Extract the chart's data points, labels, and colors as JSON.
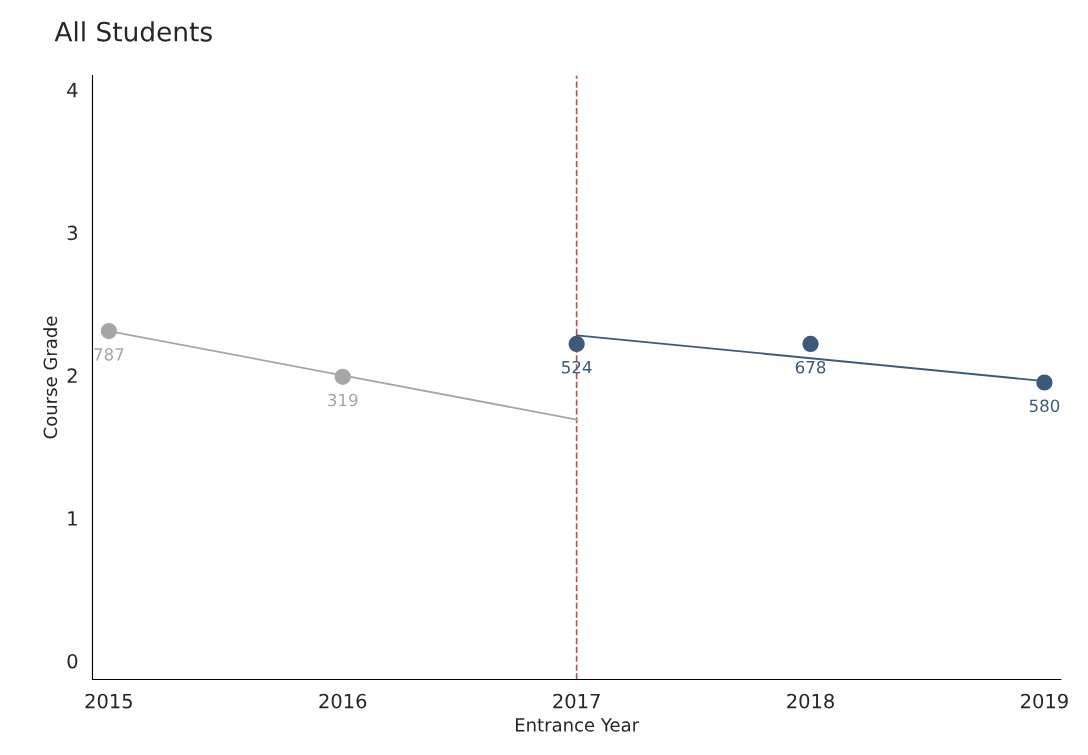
{
  "chart_data": {
    "type": "scatter",
    "title": "All Students",
    "xlabel": "Entrance Year",
    "ylabel": "Course Grade",
    "xlim": [
      2014.93,
      2019.07
    ],
    "xticks": [
      2015,
      2016,
      2017,
      2018,
      2019
    ],
    "ylim": [
      -0.13,
      4.1
    ],
    "yticks": [
      0,
      1,
      2,
      3,
      4
    ],
    "grid": false,
    "legend": false,
    "series": [
      {
        "color": "#a6a6a6",
        "marker": "circle",
        "x": [
          2015,
          2016
        ],
        "values": [
          2.31,
          1.99
        ]
      },
      {
        "type": "line",
        "color": "#a6a6a6",
        "marker": "none",
        "x": [
          2015,
          2017
        ],
        "values": [
          2.31,
          1.69
        ]
      },
      {
        "color": "#3d5a78",
        "marker": "circle",
        "x": [
          2017,
          2018,
          2019
        ],
        "values": [
          2.22,
          2.22,
          1.95
        ]
      },
      {
        "type": "line",
        "color": "#3d5a78",
        "marker": "none",
        "x": [
          2017,
          2019
        ],
        "values": [
          2.28,
          1.96
        ]
      }
    ],
    "annotations": [
      {
        "text": "787",
        "x": 2015,
        "y": 2.31
      },
      {
        "text": "319",
        "x": 2016,
        "y": 1.99
      },
      {
        "text": "524",
        "x": 2017,
        "y": 2.22
      },
      {
        "text": "678",
        "x": 2018,
        "y": 2.22
      },
      {
        "text": "580",
        "x": 2019,
        "y": 1.95
      }
    ],
    "ref_lines": [
      {
        "axis": "x",
        "value": 2017,
        "color": "#c0504d",
        "line_style": "dashed"
      }
    ]
  }
}
